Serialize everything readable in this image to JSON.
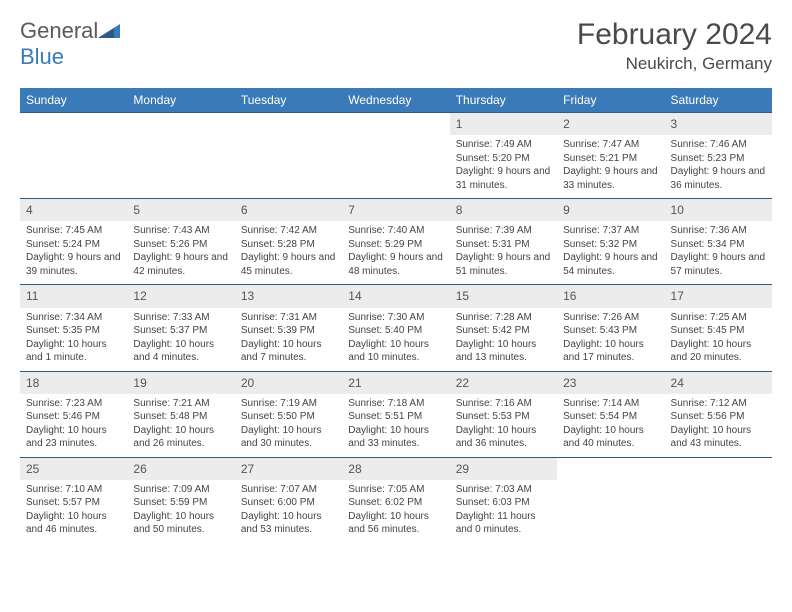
{
  "logo": {
    "word1": "General",
    "word2": "Blue"
  },
  "title": {
    "month": "February 2024",
    "location": "Neukirch, Germany"
  },
  "colors": {
    "header_bg": "#3b7ab8",
    "header_text": "#ffffff",
    "row_divider": "#2d5a8a",
    "daynum_bg": "#ececec",
    "text": "#444444",
    "background": "#ffffff"
  },
  "weekdays": [
    "Sunday",
    "Monday",
    "Tuesday",
    "Wednesday",
    "Thursday",
    "Friday",
    "Saturday"
  ],
  "weeks": [
    [
      null,
      null,
      null,
      null,
      {
        "n": "1",
        "sr": "Sunrise: 7:49 AM",
        "ss": "Sunset: 5:20 PM",
        "dl": "Daylight: 9 hours and 31 minutes."
      },
      {
        "n": "2",
        "sr": "Sunrise: 7:47 AM",
        "ss": "Sunset: 5:21 PM",
        "dl": "Daylight: 9 hours and 33 minutes."
      },
      {
        "n": "3",
        "sr": "Sunrise: 7:46 AM",
        "ss": "Sunset: 5:23 PM",
        "dl": "Daylight: 9 hours and 36 minutes."
      }
    ],
    [
      {
        "n": "4",
        "sr": "Sunrise: 7:45 AM",
        "ss": "Sunset: 5:24 PM",
        "dl": "Daylight: 9 hours and 39 minutes."
      },
      {
        "n": "5",
        "sr": "Sunrise: 7:43 AM",
        "ss": "Sunset: 5:26 PM",
        "dl": "Daylight: 9 hours and 42 minutes."
      },
      {
        "n": "6",
        "sr": "Sunrise: 7:42 AM",
        "ss": "Sunset: 5:28 PM",
        "dl": "Daylight: 9 hours and 45 minutes."
      },
      {
        "n": "7",
        "sr": "Sunrise: 7:40 AM",
        "ss": "Sunset: 5:29 PM",
        "dl": "Daylight: 9 hours and 48 minutes."
      },
      {
        "n": "8",
        "sr": "Sunrise: 7:39 AM",
        "ss": "Sunset: 5:31 PM",
        "dl": "Daylight: 9 hours and 51 minutes."
      },
      {
        "n": "9",
        "sr": "Sunrise: 7:37 AM",
        "ss": "Sunset: 5:32 PM",
        "dl": "Daylight: 9 hours and 54 minutes."
      },
      {
        "n": "10",
        "sr": "Sunrise: 7:36 AM",
        "ss": "Sunset: 5:34 PM",
        "dl": "Daylight: 9 hours and 57 minutes."
      }
    ],
    [
      {
        "n": "11",
        "sr": "Sunrise: 7:34 AM",
        "ss": "Sunset: 5:35 PM",
        "dl": "Daylight: 10 hours and 1 minute."
      },
      {
        "n": "12",
        "sr": "Sunrise: 7:33 AM",
        "ss": "Sunset: 5:37 PM",
        "dl": "Daylight: 10 hours and 4 minutes."
      },
      {
        "n": "13",
        "sr": "Sunrise: 7:31 AM",
        "ss": "Sunset: 5:39 PM",
        "dl": "Daylight: 10 hours and 7 minutes."
      },
      {
        "n": "14",
        "sr": "Sunrise: 7:30 AM",
        "ss": "Sunset: 5:40 PM",
        "dl": "Daylight: 10 hours and 10 minutes."
      },
      {
        "n": "15",
        "sr": "Sunrise: 7:28 AM",
        "ss": "Sunset: 5:42 PM",
        "dl": "Daylight: 10 hours and 13 minutes."
      },
      {
        "n": "16",
        "sr": "Sunrise: 7:26 AM",
        "ss": "Sunset: 5:43 PM",
        "dl": "Daylight: 10 hours and 17 minutes."
      },
      {
        "n": "17",
        "sr": "Sunrise: 7:25 AM",
        "ss": "Sunset: 5:45 PM",
        "dl": "Daylight: 10 hours and 20 minutes."
      }
    ],
    [
      {
        "n": "18",
        "sr": "Sunrise: 7:23 AM",
        "ss": "Sunset: 5:46 PM",
        "dl": "Daylight: 10 hours and 23 minutes."
      },
      {
        "n": "19",
        "sr": "Sunrise: 7:21 AM",
        "ss": "Sunset: 5:48 PM",
        "dl": "Daylight: 10 hours and 26 minutes."
      },
      {
        "n": "20",
        "sr": "Sunrise: 7:19 AM",
        "ss": "Sunset: 5:50 PM",
        "dl": "Daylight: 10 hours and 30 minutes."
      },
      {
        "n": "21",
        "sr": "Sunrise: 7:18 AM",
        "ss": "Sunset: 5:51 PM",
        "dl": "Daylight: 10 hours and 33 minutes."
      },
      {
        "n": "22",
        "sr": "Sunrise: 7:16 AM",
        "ss": "Sunset: 5:53 PM",
        "dl": "Daylight: 10 hours and 36 minutes."
      },
      {
        "n": "23",
        "sr": "Sunrise: 7:14 AM",
        "ss": "Sunset: 5:54 PM",
        "dl": "Daylight: 10 hours and 40 minutes."
      },
      {
        "n": "24",
        "sr": "Sunrise: 7:12 AM",
        "ss": "Sunset: 5:56 PM",
        "dl": "Daylight: 10 hours and 43 minutes."
      }
    ],
    [
      {
        "n": "25",
        "sr": "Sunrise: 7:10 AM",
        "ss": "Sunset: 5:57 PM",
        "dl": "Daylight: 10 hours and 46 minutes."
      },
      {
        "n": "26",
        "sr": "Sunrise: 7:09 AM",
        "ss": "Sunset: 5:59 PM",
        "dl": "Daylight: 10 hours and 50 minutes."
      },
      {
        "n": "27",
        "sr": "Sunrise: 7:07 AM",
        "ss": "Sunset: 6:00 PM",
        "dl": "Daylight: 10 hours and 53 minutes."
      },
      {
        "n": "28",
        "sr": "Sunrise: 7:05 AM",
        "ss": "Sunset: 6:02 PM",
        "dl": "Daylight: 10 hours and 56 minutes."
      },
      {
        "n": "29",
        "sr": "Sunrise: 7:03 AM",
        "ss": "Sunset: 6:03 PM",
        "dl": "Daylight: 11 hours and 0 minutes."
      },
      null,
      null
    ]
  ]
}
